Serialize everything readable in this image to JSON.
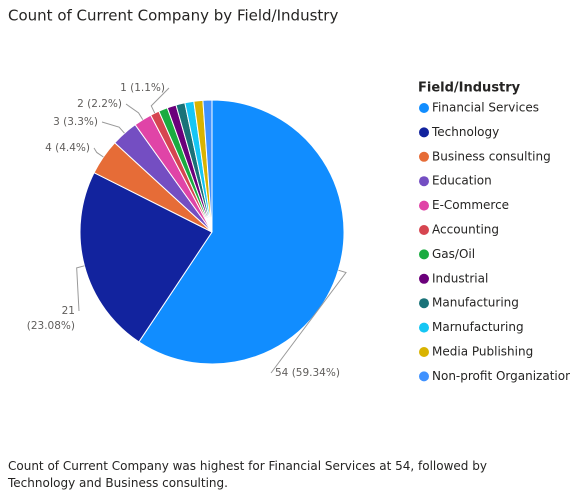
{
  "chart_data": {
    "type": "pie",
    "title": "Count of Current Company by Field/Industry",
    "legend_title": "Field/Industry",
    "categories": [
      "Financial Services",
      "Technology",
      "Business consulting",
      "Education",
      "E-Commerce",
      "Accounting",
      "Gas/Oil",
      "Industrial",
      "Manufacturing",
      "Marnufacturing",
      "Media Publishing",
      "Non-profit Organization"
    ],
    "values": [
      54,
      21,
      4,
      3,
      2,
      1,
      1,
      1,
      1,
      1,
      1,
      1
    ],
    "value_labels": [
      "54 (59.34%)",
      "21 (23.08%)",
      "4 (4.4%)",
      "3 (3.3%)",
      "2 (2.2%)",
      "1 (1.1%)",
      null,
      null,
      null,
      null,
      null,
      null
    ],
    "colors": [
      "#118DFF",
      "#12239E",
      "#E66C37",
      "#744EC2",
      "#E044A7",
      "#D64550",
      "#1AAB40",
      "#6B007B",
      "#197278",
      "#15C6F4",
      "#D9B300",
      "#4092FF"
    ],
    "legend": "right",
    "summary": "Count of Current Company was highest for Financial Services at 54, followed by Technology and Business consulting."
  }
}
